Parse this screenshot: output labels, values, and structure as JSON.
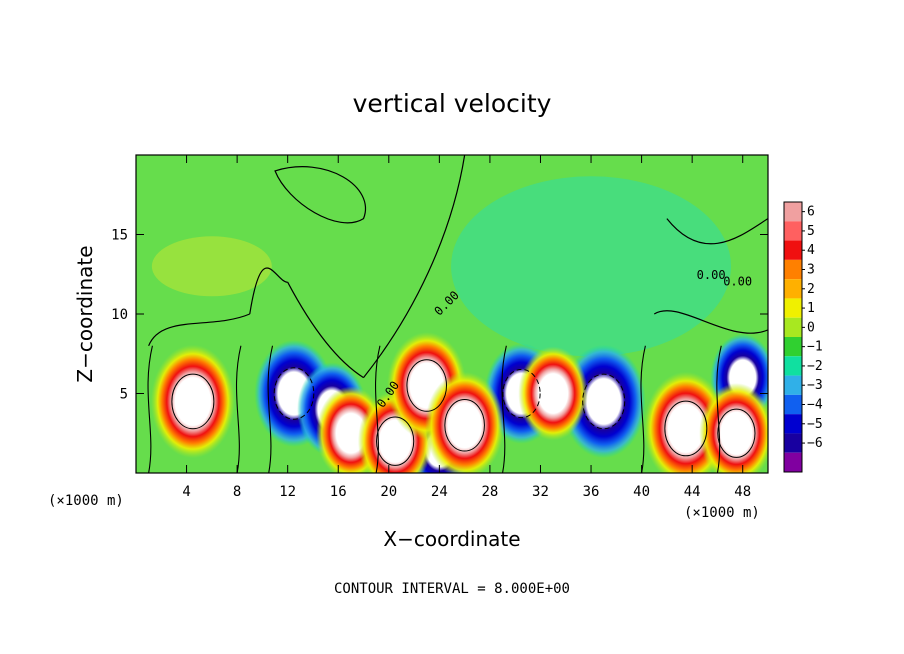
{
  "chart_data": {
    "type": "heatmap",
    "title": "vertical velocity",
    "xlabel": "X−coordinate",
    "ylabel": "Z−coordinate",
    "x_units": "(×1000 m)",
    "xlim": [
      0,
      50
    ],
    "ylim": [
      0,
      20
    ],
    "x_ticks": [
      4,
      8,
      12,
      16,
      20,
      24,
      28,
      32,
      36,
      40,
      44,
      48
    ],
    "y_ticks": [
      5,
      10,
      15
    ],
    "colorbar": {
      "levels": [
        "6",
        "5",
        "4",
        "3",
        "2",
        "1",
        "0",
        "−1",
        "−2",
        "−3",
        "−4",
        "−5",
        "−6"
      ],
      "colors": [
        "#f0a0a0",
        "#ff6060",
        "#f01010",
        "#ff8000",
        "#ffb000",
        "#f0f000",
        "#a8e820",
        "#30d030",
        "#10e0a0",
        "#30b0e8",
        "#1060f0",
        "#0000d0",
        "#1800a0",
        "#8000a0"
      ]
    },
    "contour_labels": [
      "0.00",
      "0.00",
      "0.00",
      "0.00"
    ],
    "updrafts": [
      {
        "x": 4.5,
        "z": 4.5,
        "peak": 10
      },
      {
        "x": 17.0,
        "z": 2.5,
        "peak": 7
      },
      {
        "x": 20.5,
        "z": 2.0,
        "peak": 8
      },
      {
        "x": 23.0,
        "z": 5.5,
        "peak": 9
      },
      {
        "x": 26.0,
        "z": 3.0,
        "peak": 9
      },
      {
        "x": 33.0,
        "z": 5.0,
        "peak": 7
      },
      {
        "x": 43.5,
        "z": 2.8,
        "peak": 10
      },
      {
        "x": 47.5,
        "z": 2.5,
        "peak": 8
      }
    ],
    "downdrafts": [
      {
        "x": 12.5,
        "z": 5.0,
        "peak": -9
      },
      {
        "x": 15.5,
        "z": 4.0,
        "peak": -7
      },
      {
        "x": 24.0,
        "z": 1.5,
        "peak": -6
      },
      {
        "x": 30.5,
        "z": 5.0,
        "peak": -8
      },
      {
        "x": 37.0,
        "z": 4.5,
        "peak": -10
      },
      {
        "x": 48.0,
        "z": 6.0,
        "peak": -6
      }
    ],
    "footer": "CONTOUR INTERVAL =  8.000E+00"
  }
}
